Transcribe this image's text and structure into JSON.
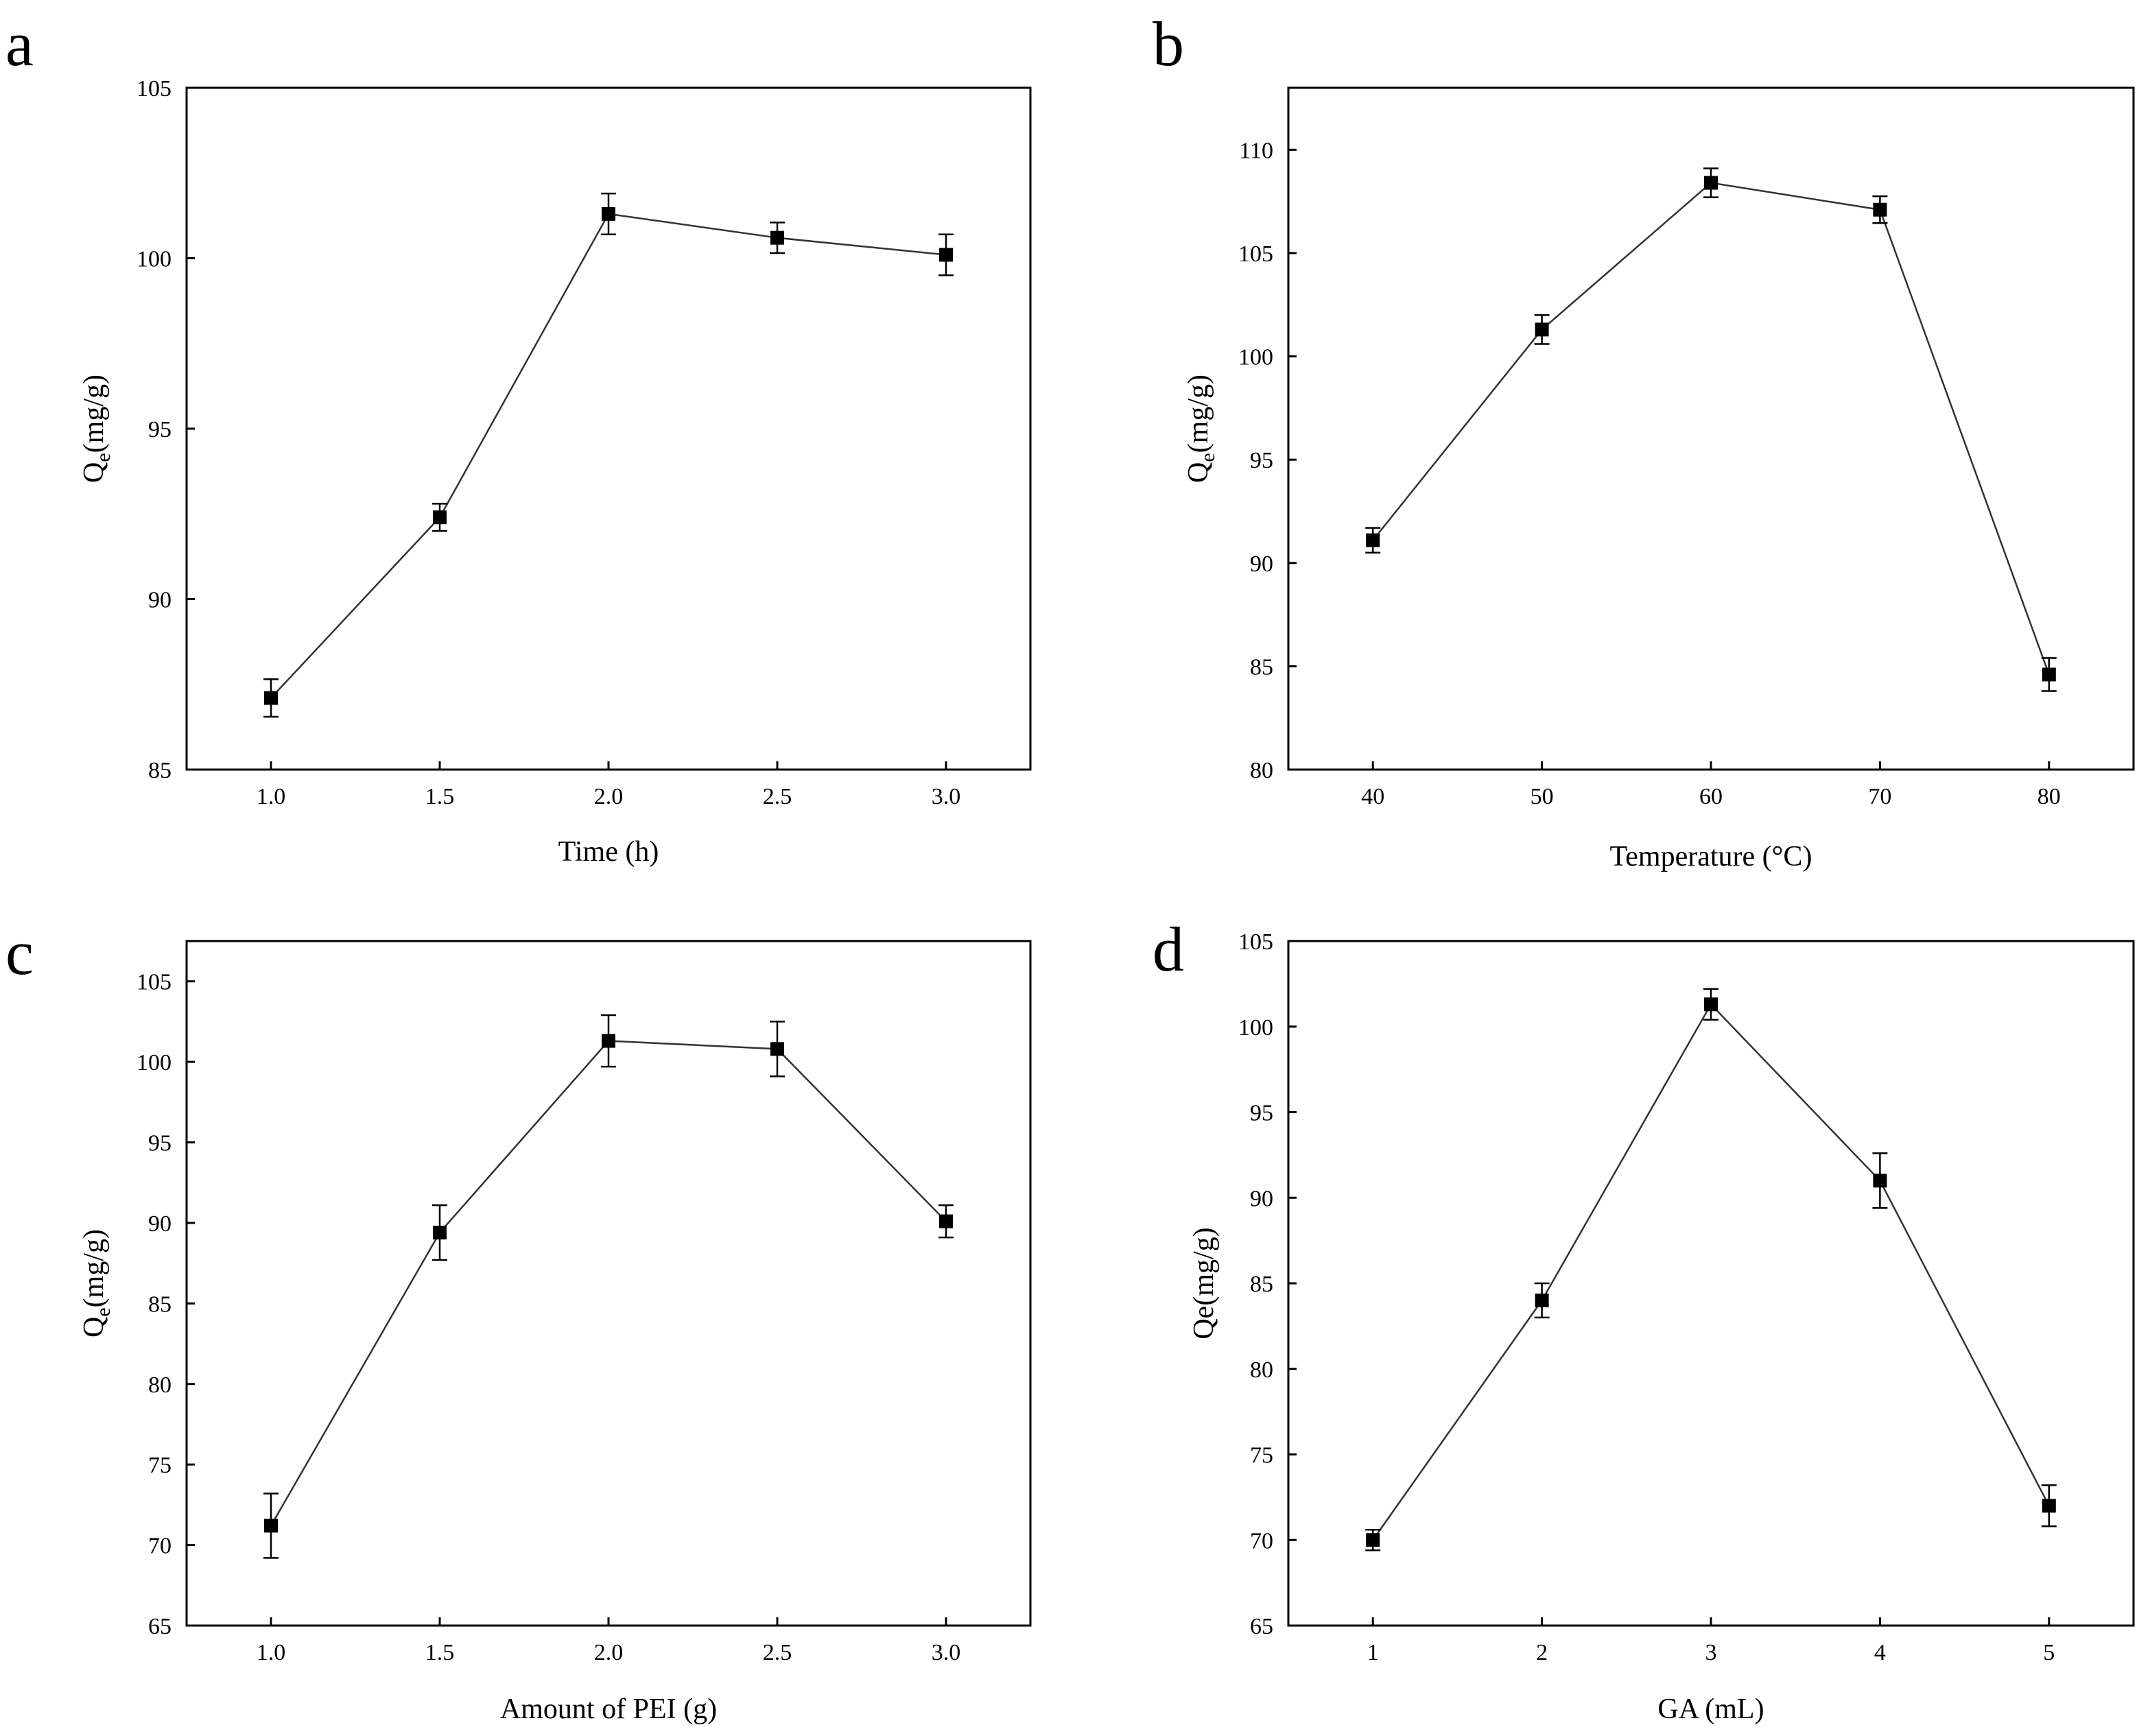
{
  "chart_data": [
    {
      "type": "line",
      "panel": "a",
      "title": "",
      "xlabel": "Time (h)",
      "ylabel": {
        "base": "Q",
        "sub": "e",
        "rest": "(mg/g)"
      },
      "x": [
        1.0,
        1.5,
        2.0,
        2.5,
        3.0
      ],
      "values": [
        87.1,
        92.4,
        101.3,
        100.6,
        100.1
      ],
      "errors": [
        0.55,
        0.4,
        0.6,
        0.45,
        0.6
      ],
      "xlim": [
        0.75,
        3.25
      ],
      "ylim": [
        85,
        105
      ],
      "xticks": [
        1.0,
        1.5,
        2.0,
        2.5,
        3.0
      ],
      "xtick_labels": [
        "1.0",
        "1.5",
        "2.0",
        "2.5",
        "3.0"
      ],
      "yticks": [
        85,
        90,
        95,
        100,
        105
      ],
      "ytick_labels": [
        "85",
        "90",
        "95",
        "100",
        "105"
      ],
      "grid": false,
      "marker": "square"
    },
    {
      "type": "line",
      "panel": "b",
      "title": "",
      "xlabel": "Temperature (°C)",
      "ylabel": {
        "base": "Q",
        "sub": "e",
        "rest": "(mg/g)"
      },
      "x": [
        40,
        50,
        60,
        70,
        80
      ],
      "values": [
        91.1,
        101.3,
        108.4,
        107.1,
        84.6
      ],
      "errors": [
        0.6,
        0.7,
        0.7,
        0.65,
        0.8
      ],
      "xlim": [
        35,
        85
      ],
      "ylim": [
        80,
        113
      ],
      "xticks": [
        40,
        50,
        60,
        70,
        80
      ],
      "xtick_labels": [
        "40",
        "50",
        "60",
        "70",
        "80"
      ],
      "yticks": [
        80,
        85,
        90,
        95,
        100,
        105,
        110
      ],
      "ytick_labels": [
        "80",
        "85",
        "90",
        "95",
        "100",
        "105",
        "110"
      ],
      "grid": false,
      "marker": "square"
    },
    {
      "type": "line",
      "panel": "c",
      "title": "",
      "xlabel": "Amount of PEI (g)",
      "ylabel": {
        "base": "Q",
        "sub": "e",
        "rest": "(mg/g)"
      },
      "x": [
        1.0,
        1.5,
        2.0,
        2.5,
        3.0
      ],
      "values": [
        71.2,
        89.4,
        101.3,
        100.8,
        90.1
      ],
      "errors": [
        2.0,
        1.7,
        1.6,
        1.7,
        1.0
      ],
      "xlim": [
        0.75,
        3.25
      ],
      "ylim": [
        65,
        107.5
      ],
      "xticks": [
        1.0,
        1.5,
        2.0,
        2.5,
        3.0
      ],
      "xtick_labels": [
        "1.0",
        "1.5",
        "2.0",
        "2.5",
        "3.0"
      ],
      "yticks": [
        65,
        70,
        75,
        80,
        85,
        90,
        95,
        100,
        105
      ],
      "ytick_labels": [
        "65",
        "70",
        "75",
        "80",
        "85",
        "90",
        "95",
        "100",
        "105"
      ],
      "grid": false,
      "marker": "square"
    },
    {
      "type": "line",
      "panel": "d",
      "title": "",
      "xlabel": "GA (mL)",
      "ylabel": {
        "base": "Qe",
        "sub": "",
        "rest": "(mg/g)"
      },
      "x": [
        1,
        2,
        3,
        4,
        5
      ],
      "values": [
        70.0,
        84.0,
        101.3,
        91.0,
        72.0
      ],
      "errors": [
        0.6,
        1.0,
        0.9,
        1.6,
        1.2
      ],
      "xlim": [
        0.5,
        5.5
      ],
      "ylim": [
        65,
        105
      ],
      "xticks": [
        1,
        2,
        3,
        4,
        5
      ],
      "xtick_labels": [
        "1",
        "2",
        "3",
        "4",
        "5"
      ],
      "yticks": [
        65,
        70,
        75,
        80,
        85,
        90,
        95,
        100,
        105
      ],
      "ytick_labels": [
        "65",
        "70",
        "75",
        "80",
        "85",
        "90",
        "95",
        "100",
        "105"
      ],
      "grid": false,
      "marker": "square"
    }
  ]
}
